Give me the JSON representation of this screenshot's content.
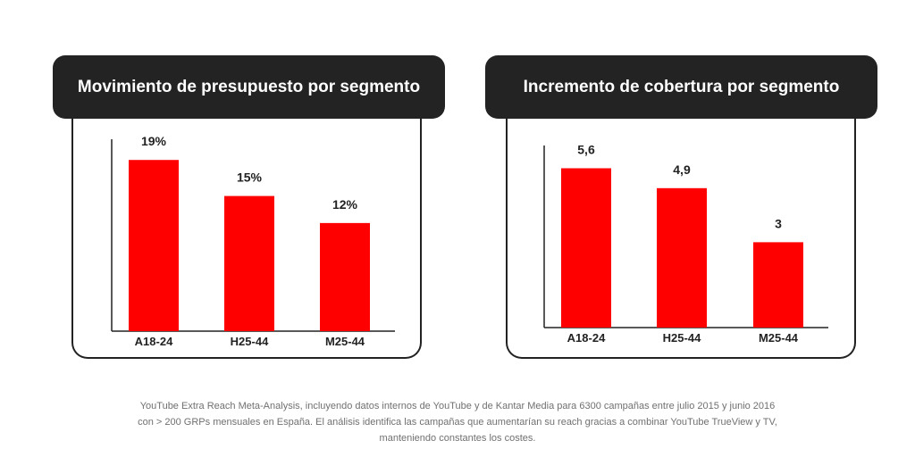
{
  "chart_data": [
    {
      "type": "bar",
      "title": "Movimiento de presupuesto por segmento",
      "categories": [
        "A18-24",
        "H25-44",
        "M25-44"
      ],
      "values": [
        19,
        15,
        12
      ],
      "value_labels": [
        "19%",
        "15%",
        "12%"
      ],
      "ylim": [
        0,
        21.3
      ],
      "grid": false,
      "bar_color": "#ff0000"
    },
    {
      "type": "bar",
      "title": "Incremento de cobertura por segmento",
      "categories": [
        "A18-24",
        "H25-44",
        "M25-44"
      ],
      "values": [
        5.6,
        4.9,
        3
      ],
      "value_labels": [
        "5,6",
        "4,9",
        "3"
      ],
      "ylim": [
        0,
        6.4
      ],
      "grid": false,
      "bar_color": "#ff0000"
    }
  ],
  "footnote": {
    "line1": "YouTube Extra Reach Meta-Analysis, incluyendo datos internos de YouTube y de Kantar Media para 6300 campañas entre julio 2015 y junio 2016",
    "line2": "con  > 200 GRPs mensuales en España. El análisis identifica las campañas que aumentarían su reach gracias a combinar YouTube TrueView y TV,",
    "line3": "manteniendo constantes los costes."
  }
}
